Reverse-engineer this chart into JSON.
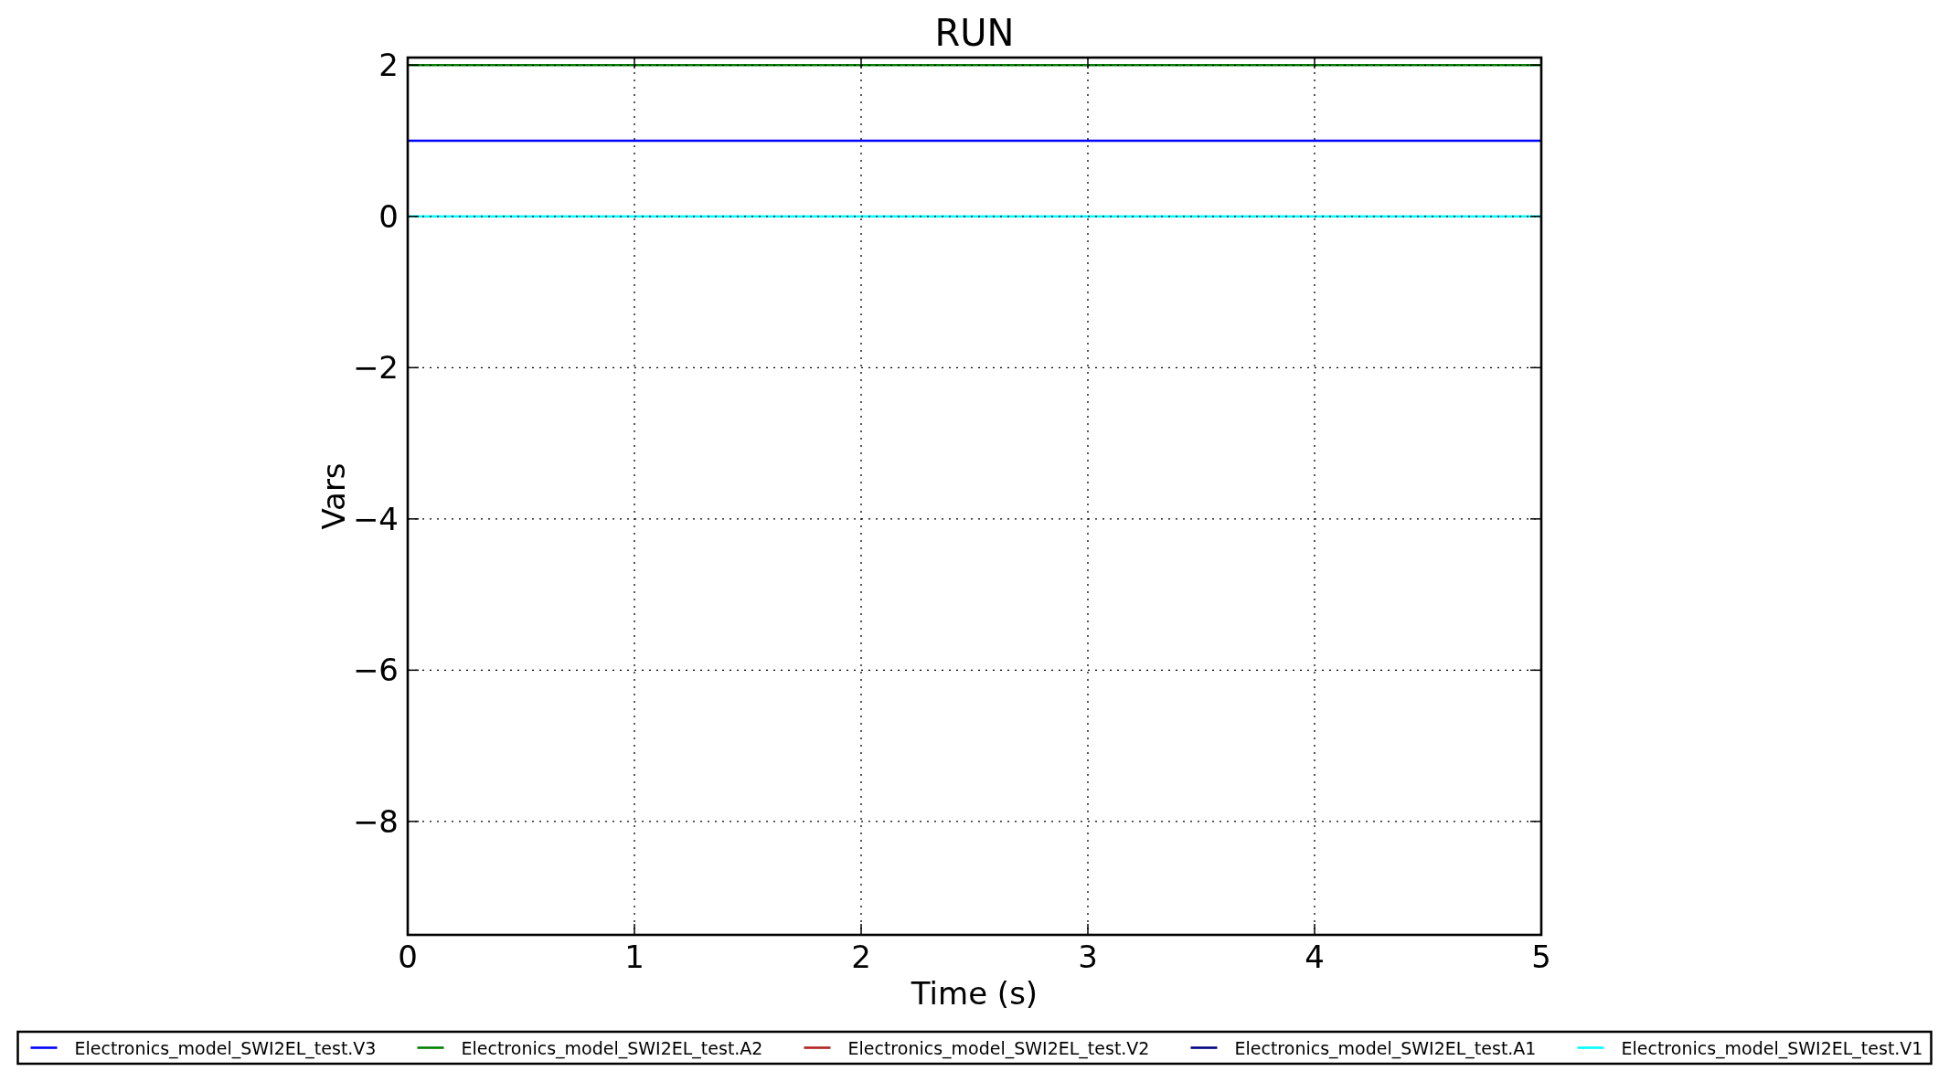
{
  "chart_data": {
    "type": "line",
    "title": "RUN",
    "xlabel": "Time (s)",
    "ylabel": "Vars",
    "x": [
      0,
      5
    ],
    "series": [
      {
        "name": "Electronics_model_SWI2EL_test.V3",
        "color": "#0000ff",
        "values": [
          1,
          1
        ]
      },
      {
        "name": "Electronics_model_SWI2EL_test.A2",
        "color": "#008000",
        "values": [
          2,
          2
        ]
      },
      {
        "name": "Electronics_model_SWI2EL_test.V2",
        "color": "#b22222",
        "values": [
          null,
          null
        ]
      },
      {
        "name": "Electronics_model_SWI2EL_test.A1",
        "color": "#000080",
        "values": [
          null,
          null
        ]
      },
      {
        "name": "Electronics_model_SWI2EL_test.V1",
        "color": "#00ffff",
        "values": [
          0,
          0
        ]
      }
    ],
    "xlim": [
      0,
      5
    ],
    "ylim": [
      -9.5,
      2.1
    ],
    "xticks": [
      0,
      1,
      2,
      3,
      4,
      5
    ],
    "yticks": [
      {
        "value": -8,
        "label": "−8"
      },
      {
        "value": -6,
        "label": "−6"
      },
      {
        "value": -4,
        "label": "−4"
      },
      {
        "value": -2,
        "label": "−2"
      },
      0,
      2
    ],
    "grid": true,
    "legend": "bottom"
  }
}
